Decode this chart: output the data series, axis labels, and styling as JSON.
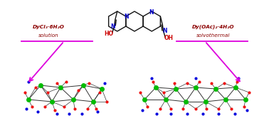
{
  "background_color": "#ffffff",
  "arrow_color": "#dd00dd",
  "left_label_line1": "DyCl₃·6H₂O",
  "left_label_line2": "solution",
  "right_label_line1": "Dy(OAc)₂·4H₂O",
  "right_label_line2": "solvothermal",
  "text_color": "#8b0000",
  "ho_color": "#cc0000",
  "n_color": "#0000cc",
  "bond_color": "#111111",
  "dy_color": "#00bb00",
  "o_color": "#ee1111",
  "cluster_bond_color": "#333333"
}
